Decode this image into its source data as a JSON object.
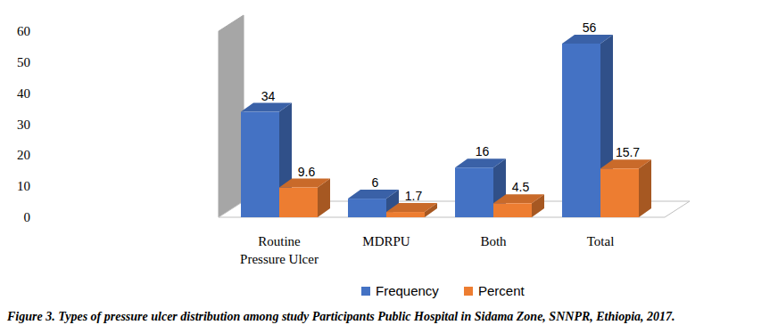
{
  "chart_data": {
    "type": "bar",
    "title": "Figure 3. Types of pressure ulcer distribution among study Participants Public Hospital in Sidama Zone, SNNPR, Ethiopia, 2017.",
    "categories": [
      "Routine Pressure Ulcer",
      "MDRPU",
      "Both",
      "Total"
    ],
    "series": [
      {
        "name": "Frequency",
        "color": "#4472c4",
        "values": [
          34,
          6,
          16,
          56
        ]
      },
      {
        "name": "Percent",
        "color": "#ed7d31",
        "values": [
          9.6,
          1.7,
          4.5,
          15.7
        ]
      }
    ],
    "ylim": [
      0,
      60
    ],
    "yticks": [
      0,
      10,
      20,
      30,
      40,
      50,
      60
    ],
    "grid": false,
    "legend": "bottom",
    "data_labels": true
  }
}
